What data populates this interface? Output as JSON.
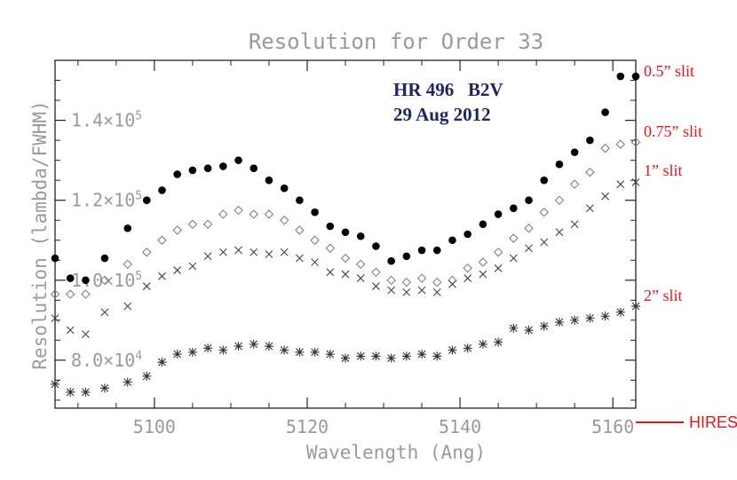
{
  "chart_data": {
    "type": "scatter",
    "title": "Resolution for Order 33",
    "xlabel": "Wavelength (Ang)",
    "ylabel": "Resolution (lambda/FWHM)",
    "xlim": [
      5087,
      5163
    ],
    "ylim": [
      68000,
      155000
    ],
    "x_ticks": [
      {
        "value": 5100,
        "label": "5100"
      },
      {
        "value": 5120,
        "label": "5120"
      },
      {
        "value": 5140,
        "label": "5140"
      },
      {
        "value": 5160,
        "label": "5160"
      }
    ],
    "y_ticks": [
      {
        "value": 80000,
        "mantissa": "8.0",
        "exp": "4"
      },
      {
        "value": 100000,
        "mantissa": "1.0",
        "exp": "5"
      },
      {
        "value": 120000,
        "mantissa": "1.2",
        "exp": "5"
      },
      {
        "value": 140000,
        "mantissa": "1.4",
        "exp": "5"
      }
    ],
    "times_sign": "×10",
    "annotation": {
      "line1": "HR 496   B2V",
      "line2": "29 Aug 2012",
      "color": "#1f2466"
    },
    "hires_label": "HIRES",
    "label_color": "#e8141a",
    "series": [
      {
        "name": "0.5” slit",
        "marker": "filled-circle",
        "x": [
          5087,
          5089,
          5091,
          5093.5,
          5096.5,
          5099,
          5101,
          5103,
          5105,
          5107,
          5109,
          5111,
          5113,
          5115,
          5117,
          5119,
          5121,
          5123,
          5125,
          5127,
          5129,
          5131,
          5133,
          5135,
          5137,
          5139,
          5141,
          5143,
          5145,
          5147,
          5149,
          5151,
          5153,
          5155,
          5157,
          5159,
          5161,
          5163
        ],
        "y": [
          105500,
          100500,
          100000,
          105500,
          113000,
          120000,
          122500,
          126500,
          127500,
          128000,
          128500,
          130000,
          128000,
          125000,
          123000,
          120000,
          117000,
          113500,
          112000,
          111000,
          108500,
          104800,
          106000,
          107500,
          107500,
          110000,
          111500,
          114000,
          116500,
          118000,
          120000,
          125000,
          129000,
          132000,
          135000,
          142000,
          151000,
          151000
        ]
      },
      {
        "name": "0.75” slit",
        "marker": "diamond",
        "x": [
          5087,
          5089,
          5091,
          5093.5,
          5096.5,
          5099,
          5101,
          5103,
          5105,
          5107,
          5109,
          5111,
          5113,
          5115,
          5117,
          5119,
          5121,
          5123,
          5125,
          5127,
          5129,
          5131,
          5133,
          5135,
          5137,
          5139,
          5141,
          5143,
          5145,
          5147,
          5149,
          5151,
          5153,
          5155,
          5157,
          5159,
          5161,
          5163
        ],
        "y": [
          96500,
          96500,
          96500,
          100000,
          104000,
          107000,
          110000,
          112500,
          114000,
          114000,
          116500,
          117500,
          116500,
          116500,
          115000,
          112500,
          110000,
          108000,
          105500,
          104000,
          102000,
          100000,
          99500,
          100500,
          99500,
          100000,
          103000,
          104500,
          107000,
          110500,
          113000,
          117000,
          120000,
          124000,
          127000,
          133000,
          134000,
          134500
        ]
      },
      {
        "name": "1” slit",
        "marker": "x",
        "x": [
          5087,
          5089,
          5091,
          5093.5,
          5096.5,
          5099,
          5101,
          5103,
          5105,
          5107,
          5109,
          5111,
          5113,
          5115,
          5117,
          5119,
          5121,
          5123,
          5125,
          5127,
          5129,
          5131,
          5133,
          5135,
          5137,
          5139,
          5141,
          5143,
          5145,
          5147,
          5149,
          5151,
          5153,
          5155,
          5157,
          5159,
          5161,
          5163
        ],
        "y": [
          90500,
          87500,
          86500,
          92000,
          93500,
          98500,
          101000,
          102500,
          103500,
          106000,
          107000,
          107500,
          107000,
          106500,
          107000,
          105500,
          104500,
          102000,
          101500,
          100500,
          98500,
          97500,
          97000,
          97500,
          97000,
          99000,
          100500,
          101500,
          103000,
          105500,
          108000,
          109500,
          112000,
          114000,
          118000,
          121000,
          124000,
          124500
        ]
      },
      {
        "name": "2” slit",
        "marker": "asterisk",
        "x": [
          5087,
          5089,
          5091,
          5093.5,
          5096.5,
          5099,
          5101,
          5103,
          5105,
          5107,
          5109,
          5111,
          5113,
          5115,
          5117,
          5119,
          5121,
          5123,
          5125,
          5127,
          5129,
          5131,
          5133,
          5135,
          5137,
          5139,
          5141,
          5143,
          5145,
          5147,
          5149,
          5151,
          5153,
          5155,
          5157,
          5159,
          5161,
          5163
        ],
        "y": [
          74000,
          72000,
          72000,
          73000,
          74500,
          76000,
          79500,
          81500,
          82000,
          83000,
          82500,
          83500,
          84000,
          83500,
          82500,
          82000,
          82000,
          81500,
          80500,
          81000,
          81000,
          80500,
          81000,
          81500,
          81000,
          82500,
          83000,
          84000,
          84500,
          88000,
          87500,
          88500,
          89500,
          90000,
          90500,
          91000,
          92000,
          93500
        ]
      }
    ]
  }
}
